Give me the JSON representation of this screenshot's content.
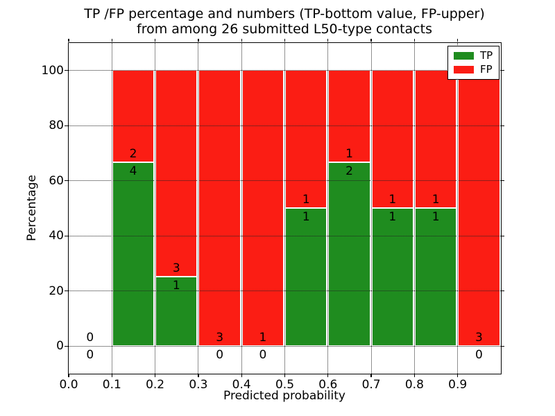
{
  "figure": {
    "title_line1": "TP /FP percentage and numbers (TP-bottom value, FP-upper)",
    "title_line2": "from among 26 submitted L50-type contacts",
    "xlabel": "Predicted probability",
    "ylabel": "Percentage"
  },
  "colors": {
    "tp": "#1f8c1f",
    "fp": "#fb1d14",
    "grid": "#222222",
    "axis": "#000000",
    "background": "#ffffff"
  },
  "legend": {
    "position": "upper-right",
    "items": [
      {
        "label": "TP",
        "color_key": "tp"
      },
      {
        "label": "FP",
        "color_key": "fp"
      }
    ]
  },
  "chart_data": {
    "type": "bar",
    "subtype": "stacked-percentage-histogram",
    "title": "TP /FP percentage and numbers (TP-bottom value, FP-upper) from among 26 submitted L50-type contacts",
    "xlabel": "Predicted probability",
    "ylabel": "Percentage",
    "xlim": [
      0.0,
      1.0
    ],
    "ylim": [
      -10,
      110
    ],
    "x_ticks": [
      "0.0",
      "0.1",
      "0.2",
      "0.3",
      "0.4",
      "0.5",
      "0.6",
      "0.7",
      "0.8",
      "0.9"
    ],
    "y_ticks": [
      "0",
      "20",
      "40",
      "60",
      "80",
      "100"
    ],
    "grid": true,
    "grid_style": "dotted",
    "legend_position": "upper-right",
    "bin_edges": [
      0.0,
      0.1,
      0.2,
      0.3,
      0.4,
      0.5,
      0.6,
      0.7,
      0.8,
      0.9,
      1.0
    ],
    "series": [
      {
        "name": "TP",
        "color_key": "tp",
        "counts": [
          0,
          4,
          1,
          0,
          0,
          1,
          2,
          1,
          1,
          0
        ]
      },
      {
        "name": "FP",
        "color_key": "fp",
        "counts": [
          0,
          2,
          3,
          3,
          1,
          1,
          1,
          1,
          1,
          3
        ]
      }
    ],
    "tp_percent_per_bin": [
      0,
      66.67,
      25,
      0,
      0,
      50,
      66.67,
      50,
      50,
      0
    ],
    "bar_total_percent": [
      0,
      100,
      100,
      100,
      100,
      100,
      100,
      100,
      100,
      100
    ],
    "total_contacts": 26
  }
}
